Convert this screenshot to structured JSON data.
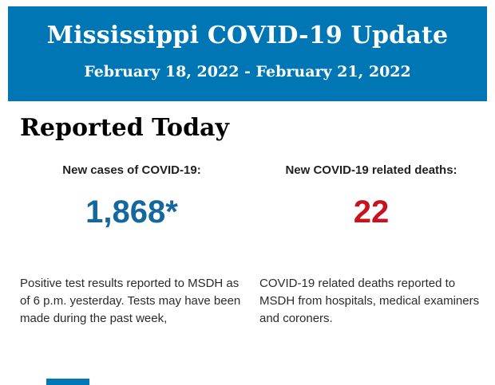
{
  "colors": {
    "banner_blue": "#0077B4",
    "cases_blue": "#14689E",
    "deaths_red": "#C9121C",
    "text_dark": "#212121"
  },
  "header": {
    "title": "Mississippi COVID-19 Update",
    "date_range": "February 18, 2022 - February 21, 2022"
  },
  "reported": {
    "section_title": "Reported Today",
    "cases": {
      "label": "New cases of COVID-19:",
      "value": "1,868*",
      "note": "Positive test results reported to MSDH as of 6 p.m. yesterday. Tests may have been made during the past week,"
    },
    "deaths": {
      "label": "New COVID-19 related deaths:",
      "value": "22",
      "note": "COVID-19 related deaths reported to MSDH from hospitals, medical examiners and coroners."
    }
  }
}
